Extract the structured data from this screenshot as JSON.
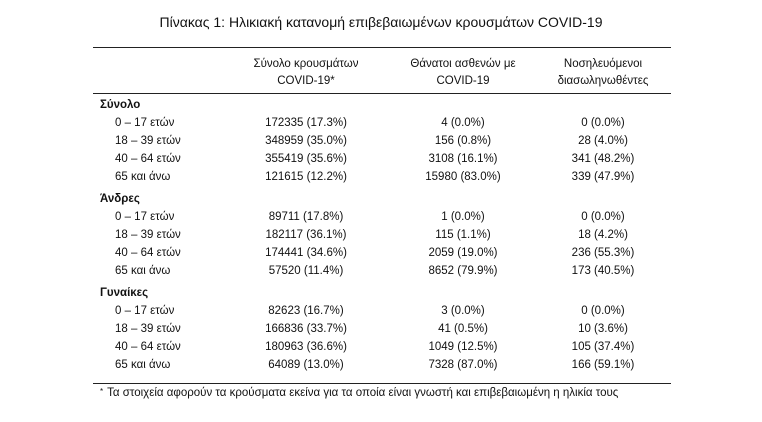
{
  "title": "Πίνακας 1: Ηλικιακή κατανομή επιβεβαιωμένων κρουσμάτων COVID-19",
  "columns": [
    {
      "line1": "Σύνολο κρουσμάτων",
      "line2": "COVID-19*"
    },
    {
      "line1": "Θάνατοι ασθενών με",
      "line2": "COVID-19"
    },
    {
      "line1": "Νοσηλευόμενοι",
      "line2": "διασωληνωθέντες"
    }
  ],
  "groups": [
    {
      "name": "Σύνολο",
      "rows": [
        {
          "age": "0 – 17 ετών",
          "cases": "172335 (17.3%)",
          "deaths": "4 (0.0%)",
          "intubated": "0 (0.0%)"
        },
        {
          "age": "18 – 39 ετών",
          "cases": "348959 (35.0%)",
          "deaths": "156 (0.8%)",
          "intubated": "28 (4.0%)"
        },
        {
          "age": "40 – 64 ετών",
          "cases": "355419 (35.6%)",
          "deaths": "3108 (16.1%)",
          "intubated": "341 (48.2%)"
        },
        {
          "age": "65 και άνω",
          "cases": "121615 (12.2%)",
          "deaths": "15980 (83.0%)",
          "intubated": "339 (47.9%)"
        }
      ]
    },
    {
      "name": "Άνδρες",
      "rows": [
        {
          "age": "0 – 17 ετών",
          "cases": "89711 (17.8%)",
          "deaths": "1 (0.0%)",
          "intubated": "0 (0.0%)"
        },
        {
          "age": "18 – 39 ετών",
          "cases": "182117 (36.1%)",
          "deaths": "115 (1.1%)",
          "intubated": "18 (4.2%)"
        },
        {
          "age": "40 – 64 ετών",
          "cases": "174441 (34.6%)",
          "deaths": "2059 (19.0%)",
          "intubated": "236 (55.3%)"
        },
        {
          "age": "65 και άνω",
          "cases": "57520 (11.4%)",
          "deaths": "8652 (79.9%)",
          "intubated": "173 (40.5%)"
        }
      ]
    },
    {
      "name": "Γυναίκες",
      "rows": [
        {
          "age": "0 – 17 ετών",
          "cases": "82623 (16.7%)",
          "deaths": "3 (0.0%)",
          "intubated": "0 (0.0%)"
        },
        {
          "age": "18 – 39 ετών",
          "cases": "166836 (33.7%)",
          "deaths": "41 (0.5%)",
          "intubated": "10 (3.6%)"
        },
        {
          "age": "40 – 64 ετών",
          "cases": "180963 (36.6%)",
          "deaths": "1049 (12.5%)",
          "intubated": "105 (37.4%)"
        },
        {
          "age": "65 και άνω",
          "cases": "64089 (13.0%)",
          "deaths": "7328 (87.0%)",
          "intubated": "166 (59.1%)"
        }
      ]
    }
  ],
  "footnote": {
    "marker": "*",
    "text": "Τα στοιχεία αφορούν τα κρούσματα εκείνα για τα οποία είναι γνωστή και επιβεβαιωμένη η ηλικία τους"
  }
}
